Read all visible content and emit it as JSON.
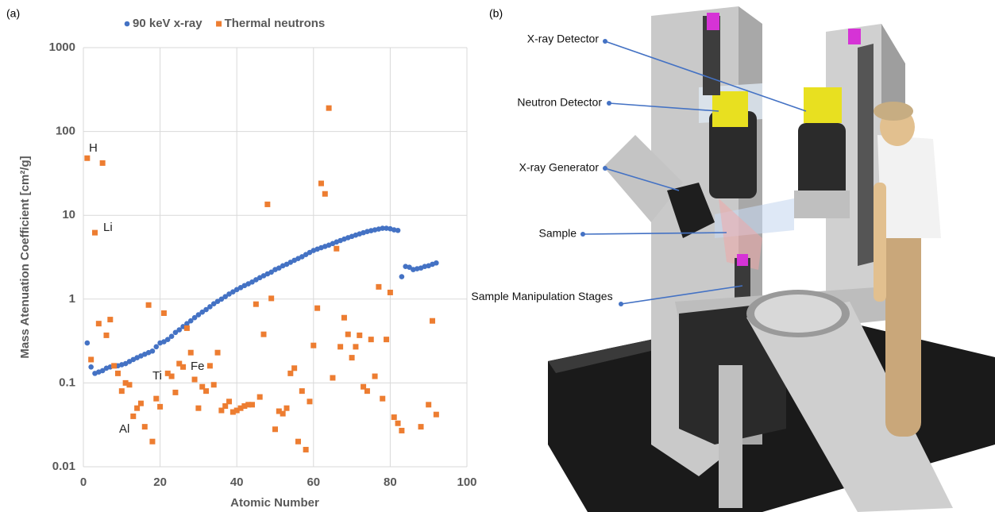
{
  "chart_data": {
    "type": "scatter",
    "x_label": "Atomic Number",
    "y_label": "Mass Atenuation Coefficient [cm²/g]",
    "x": [
      1,
      2,
      3,
      4,
      5,
      6,
      7,
      8,
      9,
      10,
      11,
      12,
      13,
      14,
      15,
      16,
      17,
      18,
      19,
      20,
      21,
      22,
      23,
      24,
      25,
      26,
      27,
      28,
      29,
      30,
      31,
      32,
      33,
      34,
      35,
      36,
      37,
      38,
      39,
      40,
      41,
      42,
      43,
      44,
      45,
      46,
      47,
      48,
      49,
      50,
      51,
      52,
      53,
      54,
      55,
      56,
      57,
      58,
      59,
      60,
      61,
      62,
      63,
      64,
      65,
      66,
      67,
      68,
      69,
      70,
      71,
      72,
      73,
      74,
      75,
      76,
      77,
      78,
      79,
      80,
      81,
      82,
      83,
      84,
      85,
      86,
      87,
      88,
      89,
      90,
      91,
      92
    ],
    "series": [
      {
        "name": "90 keV x-ray",
        "color": "#4472c4",
        "marker": "circle",
        "values": [
          0.3,
          0.155,
          0.13,
          0.135,
          0.14,
          0.15,
          0.155,
          0.16,
          0.16,
          0.165,
          0.17,
          0.18,
          0.19,
          0.2,
          0.21,
          0.22,
          0.23,
          0.24,
          0.27,
          0.3,
          0.31,
          0.33,
          0.36,
          0.4,
          0.43,
          0.47,
          0.51,
          0.55,
          0.6,
          0.65,
          0.7,
          0.75,
          0.81,
          0.88,
          0.94,
          1.0,
          1.07,
          1.15,
          1.22,
          1.3,
          1.37,
          1.45,
          1.52,
          1.6,
          1.7,
          1.8,
          1.9,
          2.0,
          2.1,
          2.25,
          2.35,
          2.5,
          2.6,
          2.75,
          2.9,
          3.05,
          3.2,
          3.4,
          3.6,
          3.8,
          3.95,
          4.1,
          4.25,
          4.4,
          4.6,
          4.8,
          5.0,
          5.2,
          5.4,
          5.6,
          5.8,
          6.0,
          6.2,
          6.4,
          6.55,
          6.7,
          6.85,
          7.0,
          7.0,
          6.9,
          6.7,
          6.6,
          1.85,
          2.45,
          2.4,
          2.25,
          2.3,
          2.35,
          2.45,
          2.5,
          2.6,
          2.7
        ]
      },
      {
        "name": "Thermal neutrons",
        "color": "#ed7d31",
        "marker": "square",
        "values": [
          48,
          0.19,
          6.2,
          0.51,
          42,
          0.37,
          0.57,
          0.16,
          0.13,
          0.08,
          0.1,
          0.095,
          0.04,
          0.05,
          0.057,
          0.03,
          0.85,
          0.02,
          0.065,
          0.052,
          0.68,
          0.13,
          0.12,
          0.077,
          0.17,
          0.155,
          0.45,
          0.23,
          0.11,
          0.05,
          0.09,
          0.08,
          0.16,
          0.095,
          0.23,
          0.047,
          0.053,
          0.06,
          0.045,
          0.047,
          0.05,
          0.053,
          0.055,
          0.055,
          0.87,
          0.068,
          0.38,
          13.5,
          1.02,
          0.028,
          0.046,
          0.043,
          0.05,
          0.13,
          0.15,
          0.02,
          0.08,
          0.016,
          0.06,
          0.28,
          0.78,
          24,
          18,
          190,
          0.115,
          4.0,
          0.27,
          0.6,
          0.38,
          0.2,
          0.27,
          0.37,
          0.09,
          0.08,
          0.33,
          0.12,
          1.4,
          0.065,
          0.33,
          1.2,
          0.039,
          0.033,
          0.027,
          null,
          null,
          null,
          null,
          0.03,
          null,
          0.055,
          0.55,
          0.042
        ]
      }
    ],
    "xlim": [
      0,
      100
    ],
    "xticks": [
      0,
      20,
      40,
      60,
      80,
      100
    ],
    "ylim": [
      0.01,
      1000
    ],
    "yticks": [
      1000,
      100,
      10,
      1,
      0.1,
      0.01
    ],
    "ylog": true,
    "grid": true,
    "legend": "top",
    "annotations": [
      "H",
      "Li",
      "Al",
      "Ti",
      "Fe"
    ]
  },
  "figure": {
    "panel_labels": [
      "(a)",
      "(b)"
    ],
    "callouts": [
      "X-ray Detector",
      "Neutron Detector",
      "X-ray Generator",
      "Sample",
      "Sample Manipulation Stages"
    ]
  }
}
